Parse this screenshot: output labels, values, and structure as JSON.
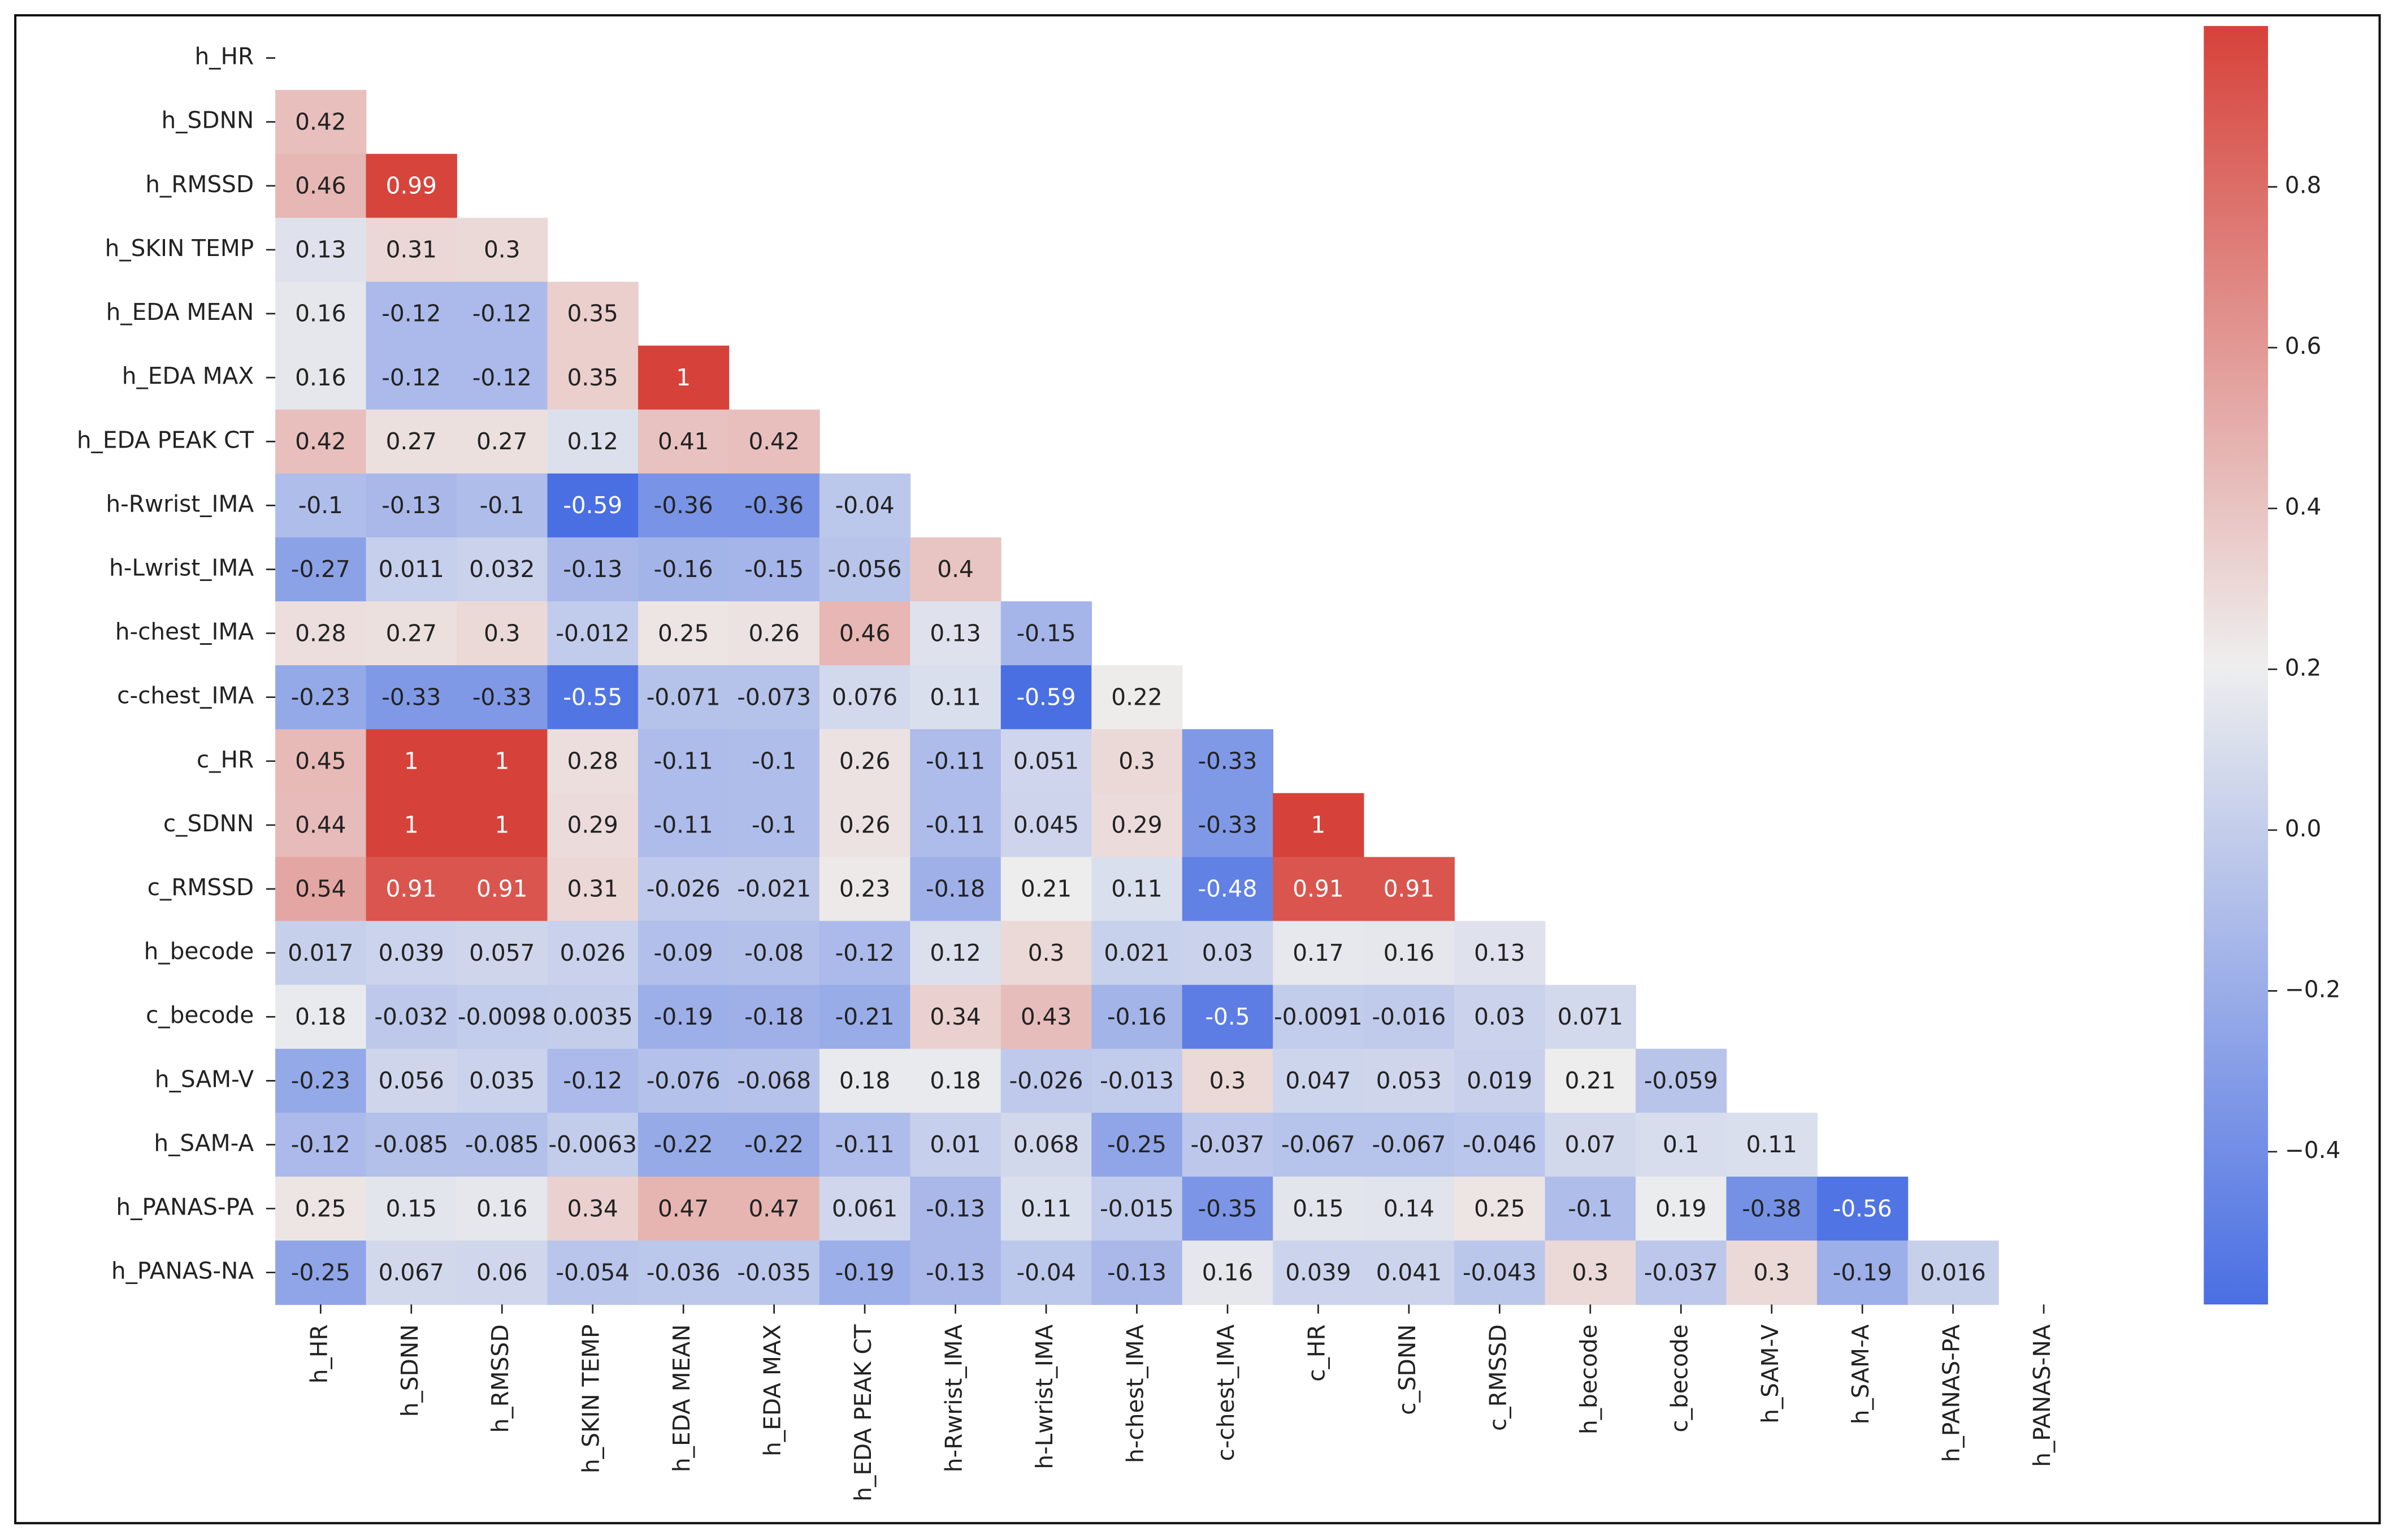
{
  "chart_data": {
    "type": "heatmap",
    "categories": [
      "h_HR",
      "h_SDNN",
      "h_RMSSD",
      "h_SKIN TEMP",
      "h_EDA MEAN",
      "h_EDA MAX",
      "h_EDA PEAK CT",
      "h-Rwrist_IMA",
      "h-Lwrist_IMA",
      "h-chest_IMA",
      "c-chest_IMA",
      "c_HR",
      "c_SDNN",
      "c_RMSSD",
      "h_becode",
      "c_becode",
      "h_SAM-V",
      "h_SAM-A",
      "h_PANAS-PA",
      "h_PANAS-NA"
    ],
    "matrix": [
      [],
      [
        0.42
      ],
      [
        0.46,
        0.99
      ],
      [
        0.13,
        0.31,
        0.3
      ],
      [
        0.16,
        -0.12,
        -0.12,
        0.35
      ],
      [
        0.16,
        -0.12,
        -0.12,
        0.35,
        1
      ],
      [
        0.42,
        0.27,
        0.27,
        0.12,
        0.41,
        0.42
      ],
      [
        -0.1,
        -0.13,
        -0.1,
        -0.59,
        -0.36,
        -0.36,
        -0.04
      ],
      [
        -0.27,
        0.011,
        0.032,
        -0.13,
        -0.16,
        -0.15,
        -0.056,
        0.4
      ],
      [
        0.28,
        0.27,
        0.3,
        -0.012,
        0.25,
        0.26,
        0.46,
        0.13,
        -0.15
      ],
      [
        -0.23,
        -0.33,
        -0.33,
        -0.55,
        -0.071,
        -0.073,
        0.076,
        0.11,
        -0.59,
        0.22
      ],
      [
        0.45,
        1,
        1,
        0.28,
        -0.11,
        -0.1,
        0.26,
        -0.11,
        0.051,
        0.3,
        -0.33
      ],
      [
        0.44,
        1,
        1,
        0.29,
        -0.11,
        -0.1,
        0.26,
        -0.11,
        0.045,
        0.29,
        -0.33,
        1
      ],
      [
        0.54,
        0.91,
        0.91,
        0.31,
        -0.026,
        -0.021,
        0.23,
        -0.18,
        0.21,
        0.11,
        -0.48,
        0.91,
        0.91
      ],
      [
        0.017,
        0.039,
        0.057,
        0.026,
        -0.09,
        -0.08,
        -0.12,
        0.12,
        0.3,
        0.021,
        0.03,
        0.17,
        0.16,
        0.13
      ],
      [
        0.18,
        -0.032,
        -0.0098,
        0.0035,
        -0.19,
        -0.18,
        -0.21,
        0.34,
        0.43,
        -0.16,
        -0.5,
        -0.0091,
        -0.016,
        0.03,
        0.071
      ],
      [
        -0.23,
        0.056,
        0.035,
        -0.12,
        -0.076,
        -0.068,
        0.18,
        0.18,
        -0.026,
        -0.013,
        0.3,
        0.047,
        0.053,
        0.019,
        0.21,
        -0.059
      ],
      [
        -0.12,
        -0.085,
        -0.085,
        -0.0063,
        -0.22,
        -0.22,
        -0.11,
        0.01,
        0.068,
        -0.25,
        -0.037,
        -0.067,
        -0.067,
        -0.046,
        0.07,
        0.1,
        0.11
      ],
      [
        0.25,
        0.15,
        0.16,
        0.34,
        0.47,
        0.47,
        0.061,
        -0.13,
        0.11,
        -0.015,
        -0.35,
        0.15,
        0.14,
        0.25,
        -0.1,
        0.19,
        -0.38,
        -0.56
      ],
      [
        -0.25,
        0.067,
        0.06,
        -0.054,
        -0.036,
        -0.035,
        -0.19,
        -0.13,
        -0.04,
        -0.13,
        0.16,
        0.039,
        0.041,
        -0.043,
        0.3,
        -0.037,
        0.3,
        -0.19,
        0.016
      ]
    ],
    "clim": [
      -0.59,
      1.0
    ],
    "colorbar_ticks": [
      {
        "value": -0.4,
        "label": "−0.4"
      },
      {
        "value": -0.2,
        "label": "−0.2"
      },
      {
        "value": 0,
        "label": "0.0"
      },
      0.2,
      0.4,
      0.6,
      0.8
    ],
    "colormap": [
      "#4a6fe3",
      "#eeeeee",
      "#d6423a"
    ]
  }
}
